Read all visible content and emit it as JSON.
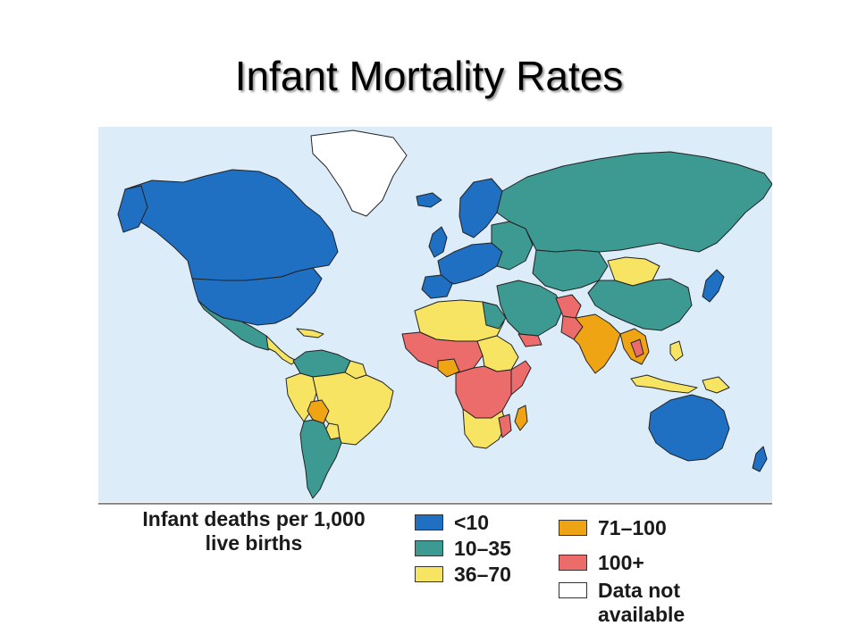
{
  "slide": {
    "title": "Infant Mortality Rates"
  },
  "map": {
    "legend_title_line1": "Infant deaths per 1,000",
    "legend_title_line2": "live births",
    "classes": [
      {
        "id": "lt10",
        "label": "<10",
        "color": "#1f6fc2"
      },
      {
        "id": "c10_35",
        "label": "10–35",
        "color": "#3d9a92"
      },
      {
        "id": "c36_70",
        "label": "36–70",
        "color": "#f7e463"
      },
      {
        "id": "c71_100",
        "label": "71–100",
        "color": "#eea413"
      },
      {
        "id": "c100p",
        "label": "100+",
        "color": "#ec6b6b"
      },
      {
        "id": "na",
        "label_line1": "Data not",
        "label_line2": "available",
        "color": "#ffffff"
      }
    ],
    "ocean_color": "#dcecf9"
  }
}
